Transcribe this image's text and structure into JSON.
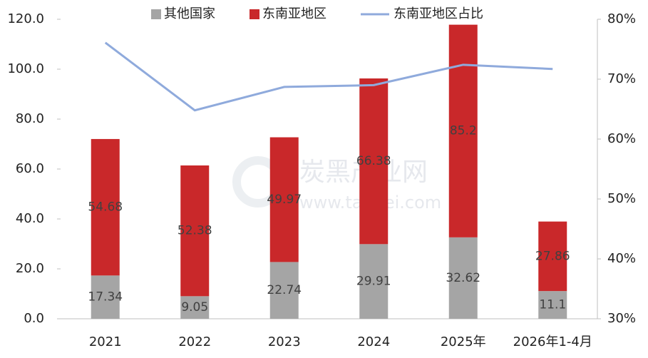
{
  "chart_data": {
    "type": "bar",
    "categories": [
      "2021",
      "2022",
      "2023",
      "2024",
      "2025年",
      "2026年1-4月"
    ],
    "series": [
      {
        "name": "其他国家",
        "color": "#a5a5a5",
        "values": [
          17.34,
          9.05,
          22.74,
          29.91,
          32.62,
          11.1
        ]
      },
      {
        "name": "东南亚地区",
        "color": "#c9282a",
        "values": [
          54.68,
          52.38,
          49.97,
          66.38,
          85.2,
          27.86
        ]
      },
      {
        "name": "东南亚地区占比",
        "color": "#8faadc",
        "type": "line",
        "axis": "y2",
        "values": [
          76.1,
          64.8,
          68.7,
          69.0,
          72.4,
          71.7
        ]
      }
    ],
    "ylim": [
      0,
      120
    ],
    "yticks": [
      {
        "value": 0,
        "label": "0.0"
      },
      {
        "value": 20,
        "label": "20.0"
      },
      {
        "value": 40,
        "label": "40.0"
      },
      {
        "value": 60,
        "label": "60.0"
      },
      {
        "value": 80,
        "label": "80.0"
      },
      {
        "value": 100,
        "label": "100.0"
      },
      {
        "value": 120,
        "label": "120.0"
      }
    ],
    "y2lim": [
      30,
      80
    ],
    "y2ticks": [
      {
        "value": 30,
        "label": "30%"
      },
      {
        "value": 40,
        "label": "40%"
      },
      {
        "value": 50,
        "label": "50%"
      },
      {
        "value": 60,
        "label": "60%"
      },
      {
        "value": 70,
        "label": "70%"
      },
      {
        "value": 80,
        "label": "80%"
      }
    ],
    "legend": "top",
    "watermark": {
      "title": "炭黑产业网",
      "url": "www.tanhei.com"
    }
  }
}
